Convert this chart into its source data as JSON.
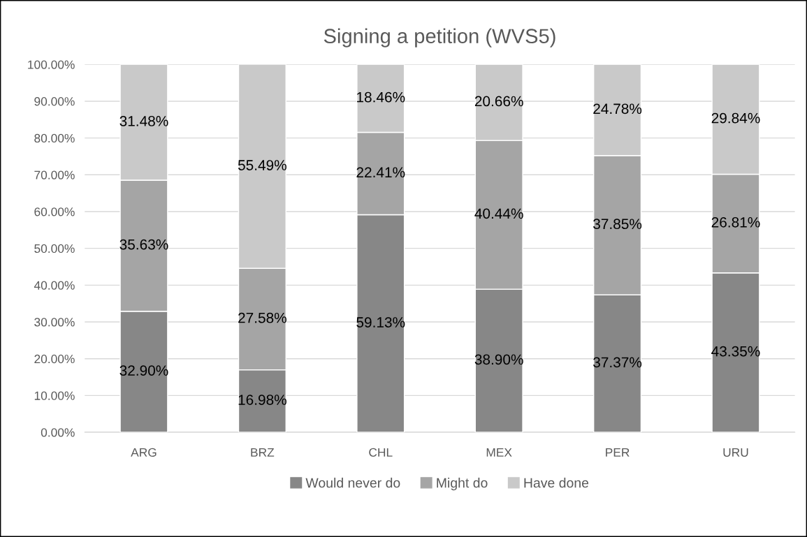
{
  "chart_data": {
    "type": "bar",
    "title": "Signing a petition (WVS5)",
    "stacked": true,
    "categories": [
      "ARG",
      "BRZ",
      "CHL",
      "MEX",
      "PER",
      "URU"
    ],
    "series": [
      {
        "name": "Would never do",
        "color": "#878787",
        "values": [
          32.9,
          16.98,
          59.13,
          38.9,
          37.37,
          43.35
        ],
        "value_labels": [
          "32.90%",
          "16.98%",
          "59.13%",
          "38.90%",
          "37.37%",
          "43.35%"
        ]
      },
      {
        "name": "Might do",
        "color": "#a5a5a5",
        "values": [
          35.63,
          27.58,
          22.41,
          40.44,
          37.85,
          26.81
        ],
        "value_labels": [
          "35.63%",
          "27.58%",
          "22.41%",
          "40.44%",
          "37.85%",
          "26.81%"
        ]
      },
      {
        "name": "Have done",
        "color": "#c9c9c9",
        "values": [
          31.48,
          55.49,
          18.46,
          20.66,
          24.78,
          29.84
        ],
        "value_labels": [
          "31.48%",
          "55.49%",
          "18.46%",
          "20.66%",
          "24.78%",
          "29.84%"
        ]
      }
    ],
    "ylim": [
      0,
      100
    ],
    "yticks": [
      {
        "value": 0,
        "label": "0.00%"
      },
      {
        "value": 10,
        "label": "10.00%"
      },
      {
        "value": 20,
        "label": "20.00%"
      },
      {
        "value": 30,
        "label": "30.00%"
      },
      {
        "value": 40,
        "label": "40.00%"
      },
      {
        "value": 50,
        "label": "50.00%"
      },
      {
        "value": 60,
        "label": "60.00%"
      },
      {
        "value": 70,
        "label": "70.00%"
      },
      {
        "value": 80,
        "label": "80.00%"
      },
      {
        "value": 90,
        "label": "90.00%"
      },
      {
        "value": 100,
        "label": "100.00%"
      }
    ],
    "grid": "y",
    "legend": "bottom"
  }
}
